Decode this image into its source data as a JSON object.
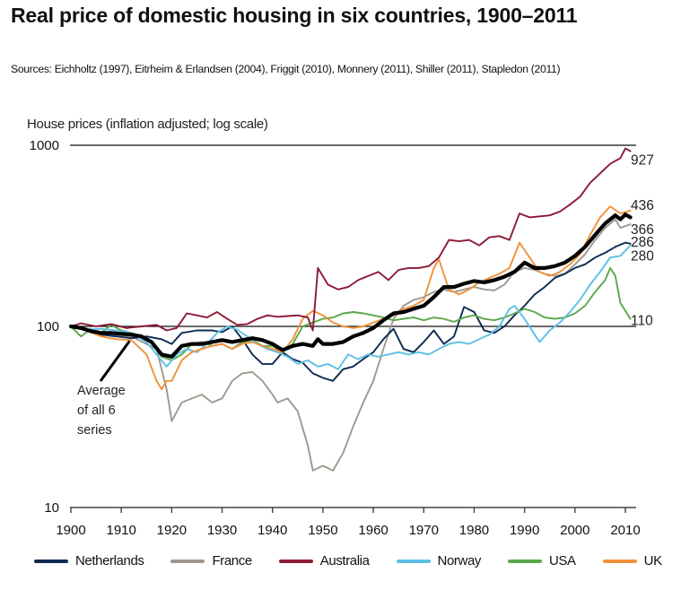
{
  "chart_data": {
    "type": "line",
    "title": "Real price of domestic housing in six countries, 1900–2011",
    "subtitle": "Sources: Eichholtz (1997), Eitrheim & Erlandsen (2004), Friggit (2010), Monnery (2011), Shiller (2011), Stapledon (2011)",
    "ylabel": "House prices (inflation adjusted; log scale)",
    "xlabel": "",
    "y_scale": "log",
    "ylim": [
      10,
      1000
    ],
    "xlim": [
      1900,
      2012
    ],
    "y_ticks": [
      "10",
      "100",
      "1000"
    ],
    "y_tick_values": [
      10,
      100,
      1000
    ],
    "x_ticks": [
      "1900",
      "1910",
      "1920",
      "1930",
      "1940",
      "1950",
      "1960",
      "1970",
      "1980",
      "1990",
      "2000",
      "2010"
    ],
    "x_tick_values": [
      1900,
      1910,
      1920,
      1930,
      1940,
      1950,
      1960,
      1970,
      1980,
      1990,
      2000,
      2010
    ],
    "grid": "horizontal reference lines at 100 and 1000",
    "legend_position": "bottom",
    "series": [
      {
        "name": "Netherlands",
        "color": "#0d2a52",
        "end_label": "286",
        "x": [
          1900,
          1903,
          1906,
          1909,
          1912,
          1915,
          1918,
          1920,
          1922,
          1925,
          1928,
          1930,
          1932,
          1934,
          1936,
          1938,
          1940,
          1942,
          1944,
          1946,
          1948,
          1950,
          1952,
          1954,
          1956,
          1958,
          1960,
          1962,
          1964,
          1966,
          1968,
          1970,
          1972,
          1974,
          1976,
          1978,
          1980,
          1982,
          1984,
          1986,
          1988,
          1990,
          1992,
          1994,
          1996,
          1998,
          2000,
          2002,
          2004,
          2006,
          2008,
          2010,
          2011
        ],
        "values": [
          100,
          97,
          90,
          88,
          86,
          88,
          85,
          80,
          92,
          95,
          95,
          93,
          100,
          85,
          70,
          62,
          62,
          72,
          66,
          63,
          55,
          52,
          50,
          58,
          60,
          66,
          72,
          85,
          97,
          75,
          72,
          82,
          95,
          80,
          88,
          128,
          120,
          95,
          92,
          100,
          115,
          130,
          150,
          165,
          185,
          195,
          210,
          220,
          240,
          255,
          275,
          290,
          286
        ]
      },
      {
        "name": "France",
        "color": "#a09890",
        "end_label": "366",
        "x": [
          1900,
          1903,
          1906,
          1909,
          1912,
          1915,
          1917,
          1919,
          1920,
          1922,
          1924,
          1926,
          1928,
          1930,
          1932,
          1934,
          1936,
          1938,
          1940,
          1941,
          1943,
          1945,
          1947,
          1948,
          1950,
          1952,
          1954,
          1956,
          1958,
          1960,
          1962,
          1964,
          1966,
          1968,
          1970,
          1972,
          1974,
          1976,
          1978,
          1980,
          1982,
          1984,
          1986,
          1988,
          1990,
          1992,
          1994,
          1996,
          1998,
          2000,
          2002,
          2004,
          2006,
          2008,
          2009,
          2011
        ],
        "values": [
          100,
          96,
          92,
          90,
          88,
          80,
          75,
          45,
          30,
          38,
          40,
          42,
          38,
          40,
          50,
          55,
          56,
          50,
          42,
          38,
          40,
          34,
          22,
          16,
          17,
          16,
          20,
          28,
          38,
          50,
          75,
          110,
          130,
          140,
          145,
          155,
          160,
          155,
          160,
          165,
          160,
          158,
          170,
          200,
          210,
          205,
          195,
          190,
          195,
          220,
          250,
          300,
          350,
          390,
          350,
          366
        ]
      },
      {
        "name": "Australia",
        "color": "#8b1a35",
        "end_label": "927",
        "x": [
          1900,
          1902,
          1905,
          1908,
          1911,
          1914,
          1917,
          1919,
          1921,
          1923,
          1925,
          1927,
          1929,
          1931,
          1933,
          1935,
          1937,
          1939,
          1941,
          1943,
          1945,
          1947,
          1948,
          1949,
          1951,
          1953,
          1955,
          1957,
          1959,
          1961,
          1963,
          1965,
          1967,
          1969,
          1971,
          1973,
          1975,
          1977,
          1979,
          1981,
          1983,
          1985,
          1987,
          1989,
          1991,
          1993,
          1995,
          1997,
          1999,
          2001,
          2003,
          2005,
          2007,
          2009,
          2010,
          2011
        ],
        "values": [
          100,
          104,
          100,
          103,
          98,
          100,
          102,
          95,
          98,
          118,
          115,
          112,
          120,
          110,
          102,
          103,
          110,
          115,
          113,
          114,
          115,
          112,
          95,
          210,
          170,
          160,
          165,
          180,
          190,
          200,
          180,
          205,
          210,
          210,
          215,
          240,
          300,
          295,
          300,
          280,
          310,
          315,
          300,
          420,
          400,
          405,
          410,
          430,
          470,
          520,
          620,
          700,
          790,
          850,
          960,
          927
        ]
      },
      {
        "name": "Norway",
        "color": "#5cc0e6",
        "end_label": "280",
        "x": [
          1900,
          1903,
          1906,
          1909,
          1912,
          1915,
          1917,
          1919,
          1921,
          1923,
          1925,
          1927,
          1929,
          1931,
          1933,
          1935,
          1937,
          1939,
          1941,
          1943,
          1945,
          1947,
          1949,
          1951,
          1953,
          1955,
          1957,
          1959,
          1961,
          1963,
          1965,
          1967,
          1969,
          1971,
          1973,
          1975,
          1977,
          1979,
          1981,
          1983,
          1985,
          1987,
          1988,
          1990,
          1992,
          1993,
          1995,
          1997,
          1999,
          2001,
          2003,
          2005,
          2007,
          2009,
          2011
        ],
        "values": [
          100,
          96,
          97,
          95,
          92,
          82,
          70,
          60,
          70,
          75,
          72,
          80,
          92,
          100,
          96,
          88,
          80,
          75,
          72,
          68,
          62,
          65,
          60,
          62,
          58,
          70,
          66,
          70,
          68,
          70,
          72,
          70,
          72,
          70,
          75,
          80,
          82,
          80,
          85,
          90,
          100,
          125,
          130,
          110,
          90,
          82,
          95,
          105,
          120,
          140,
          170,
          200,
          240,
          245,
          280
        ]
      },
      {
        "name": "USA",
        "color": "#5aa84a",
        "end_label": "110",
        "x": [
          1900,
          1902,
          1904,
          1906,
          1908,
          1910,
          1912,
          1914,
          1916,
          1918,
          1920,
          1922,
          1924,
          1926,
          1928,
          1930,
          1932,
          1934,
          1936,
          1938,
          1940,
          1942,
          1944,
          1946,
          1948,
          1950,
          1952,
          1954,
          1956,
          1958,
          1960,
          1962,
          1964,
          1966,
          1968,
          1970,
          1972,
          1974,
          1976,
          1978,
          1980,
          1982,
          1984,
          1986,
          1988,
          1990,
          1992,
          1994,
          1996,
          1998,
          2000,
          2002,
          2004,
          2006,
          2007,
          2008,
          2009,
          2011
        ],
        "values": [
          100,
          88,
          97,
          92,
          102,
          95,
          92,
          88,
          82,
          68,
          65,
          70,
          80,
          82,
          78,
          80,
          75,
          82,
          84,
          78,
          78,
          72,
          80,
          100,
          105,
          110,
          112,
          118,
          120,
          118,
          115,
          112,
          108,
          110,
          112,
          108,
          112,
          110,
          106,
          112,
          115,
          110,
          108,
          112,
          118,
          125,
          120,
          112,
          110,
          112,
          118,
          130,
          155,
          180,
          210,
          190,
          135,
          110
        ]
      },
      {
        "name": "UK",
        "color": "#f0923a",
        "end_label": "436",
        "x": [
          1900,
          1903,
          1906,
          1909,
          1912,
          1915,
          1917,
          1918,
          1919,
          1920,
          1922,
          1924,
          1926,
          1928,
          1930,
          1932,
          1934,
          1936,
          1938,
          1940,
          1942,
          1944,
          1946,
          1948,
          1950,
          1952,
          1954,
          1956,
          1958,
          1960,
          1962,
          1964,
          1966,
          1968,
          1970,
          1972,
          1973,
          1975,
          1977,
          1979,
          1981,
          1983,
          1985,
          1987,
          1989,
          1991,
          1993,
          1995,
          1997,
          1999,
          2001,
          2003,
          2005,
          2007,
          2009,
          2011
        ],
        "values": [
          100,
          95,
          88,
          85,
          84,
          70,
          50,
          45,
          50,
          50,
          65,
          72,
          75,
          78,
          80,
          75,
          80,
          82,
          78,
          75,
          72,
          85,
          110,
          122,
          115,
          105,
          100,
          98,
          100,
          105,
          110,
          115,
          125,
          130,
          140,
          210,
          235,
          160,
          150,
          160,
          175,
          185,
          195,
          210,
          290,
          240,
          200,
          190,
          200,
          220,
          250,
          320,
          400,
          460,
          420,
          436
        ]
      },
      {
        "name": "Average of all 6 series",
        "color": "#000000",
        "end_label": "",
        "x": [
          1900,
          1902,
          1904,
          1906,
          1908,
          1910,
          1912,
          1914,
          1916,
          1918,
          1920,
          1922,
          1924,
          1926,
          1928,
          1930,
          1932,
          1934,
          1936,
          1938,
          1940,
          1942,
          1944,
          1946,
          1948,
          1949,
          1950,
          1952,
          1954,
          1956,
          1958,
          1960,
          1962,
          1964,
          1966,
          1968,
          1970,
          1972,
          1974,
          1976,
          1978,
          1980,
          1982,
          1984,
          1986,
          1988,
          1990,
          1992,
          1994,
          1996,
          1998,
          2000,
          2002,
          2004,
          2006,
          2008,
          2009,
          2010,
          2011
        ],
        "values": [
          100,
          98,
          94,
          92,
          92,
          91,
          90,
          88,
          82,
          70,
          68,
          78,
          80,
          80,
          82,
          84,
          82,
          84,
          86,
          84,
          80,
          74,
          78,
          80,
          78,
          85,
          80,
          80,
          82,
          88,
          92,
          98,
          108,
          118,
          120,
          125,
          130,
          145,
          165,
          165,
          172,
          178,
          175,
          180,
          188,
          200,
          225,
          210,
          210,
          215,
          225,
          245,
          275,
          320,
          370,
          410,
          390,
          415,
          400
        ]
      }
    ],
    "annotations": [
      {
        "text_lines": [
          "Average",
          "of all 6",
          "series"
        ],
        "points_to": "Average of all 6 series",
        "x": 1912,
        "y": 91
      }
    ]
  }
}
